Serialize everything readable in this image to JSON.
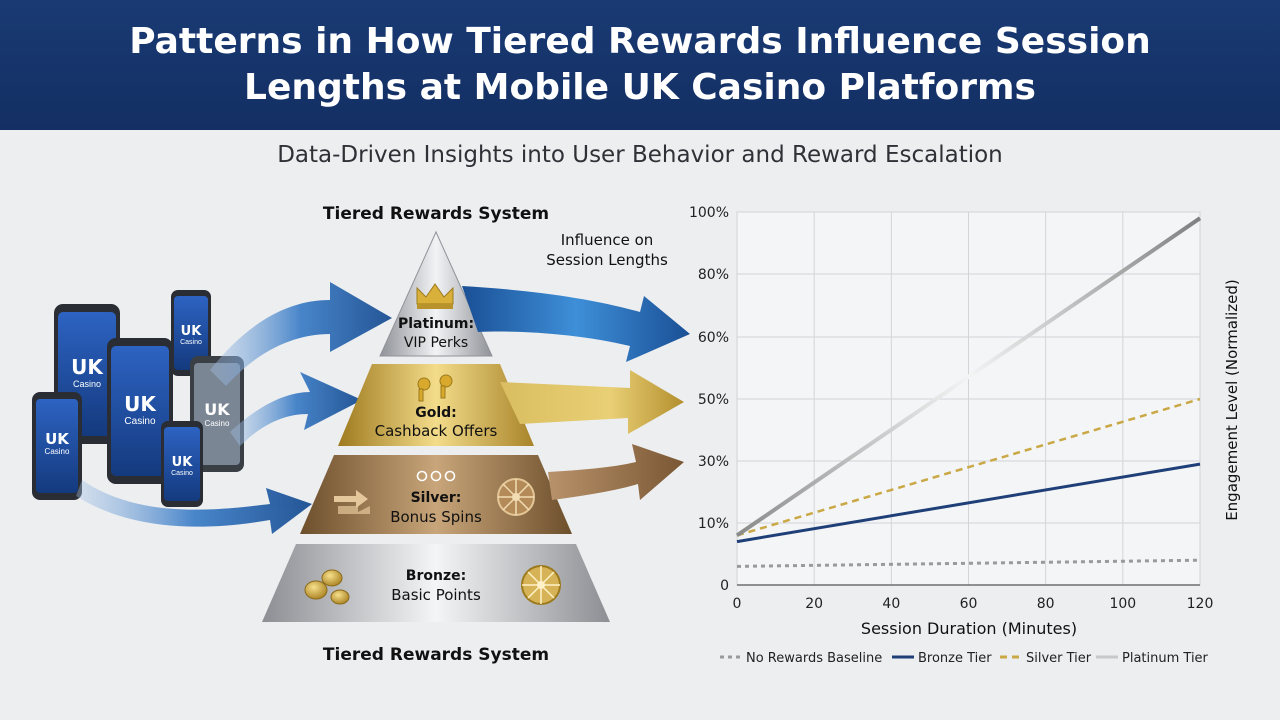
{
  "title": "Patterns in How Tiered Rewards Influence Session Lengths at Mobile UK Casino Platforms",
  "subtitle": "Data-Driven Insights into User Behavior and Reward Escalation",
  "infographic": {
    "top_label": "Tiered Rewards System",
    "bottom_label": "Tiered Rewards System",
    "influence_label_line1": "Influence on",
    "influence_label_line2": "Session Lengths",
    "phone_logo_big": "UK",
    "phone_logo_small": "Casino",
    "tiers": [
      {
        "name": "Platinum:",
        "perk": "VIP Perks"
      },
      {
        "name": "Gold:",
        "perk": "Cashback Offers"
      },
      {
        "name": "Silver:",
        "perk": "Bonus Spins"
      },
      {
        "name": "Bronze:",
        "perk": "Basic Points"
      }
    ]
  },
  "colors": {
    "banner": "#163468",
    "platinum": "#b9bcc2",
    "gold": "#c9a63c",
    "silver": "#8a6a40",
    "bronze": "#b5b7bb",
    "arrow_blue": "#1d5fa8",
    "no_rewards": "#9a9a9a",
    "bronze_line": "#1f3f78",
    "silver_line": "#c9a845",
    "platinum_line": "#9a9a9a"
  },
  "chart_data": {
    "type": "line",
    "xlabel": "Session Duration (Minutes)",
    "ylabel": "Engagement Level (Normalized)",
    "xlim": [
      0,
      120
    ],
    "x_ticks": [
      "0",
      "20",
      "40",
      "60",
      "80",
      "100",
      "120"
    ],
    "y_ticks": [
      "0",
      "10%",
      "30%",
      "50%",
      "60%",
      "80%",
      "100%"
    ],
    "grid": true,
    "legend_position": "bottom",
    "series": [
      {
        "name": "No Rewards Baseline",
        "style": "dotted",
        "color": "#9a9a9a",
        "x": [
          0,
          120
        ],
        "y": [
          3,
          4
        ]
      },
      {
        "name": "Bronze Tier",
        "style": "solid",
        "color": "#1f3f78",
        "x": [
          0,
          120
        ],
        "y": [
          7,
          29
        ]
      },
      {
        "name": "Silver Tier",
        "style": "dashed",
        "color": "#c9a845",
        "x": [
          0,
          120
        ],
        "y": [
          8,
          50
        ]
      },
      {
        "name": "Platinum Tier",
        "style": "solid-gradient",
        "color": "#9a9a9a",
        "x": [
          0,
          120
        ],
        "y": [
          8,
          98
        ]
      }
    ]
  }
}
